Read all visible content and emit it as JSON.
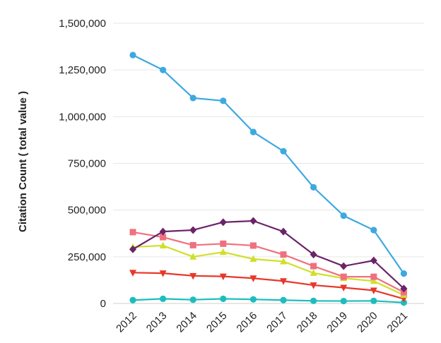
{
  "chart_data": {
    "type": "line",
    "title": "",
    "xlabel": "",
    "ylabel": "Citation Count ( total value )",
    "categories": [
      "2012",
      "2013",
      "2014",
      "2015",
      "2016",
      "2017",
      "2018",
      "2019",
      "2020",
      "2021"
    ],
    "ylim": [
      0,
      1500000
    ],
    "yticks": [
      0,
      250000,
      500000,
      750000,
      1000000,
      1250000,
      1500000
    ],
    "ytick_labels": [
      "0",
      "250,000",
      "500,000",
      "750,000",
      "1,000,000",
      "1,250,000",
      "1,500,000"
    ],
    "grid": true,
    "legend": "none",
    "series": [
      {
        "color": "#3ea8e0",
        "marker": "circle",
        "values": [
          1330000,
          1250000,
          1100000,
          1085000,
          918000,
          815000,
          622000,
          470000,
          393000,
          160000
        ]
      },
      {
        "color": "#6b2468",
        "marker": "diamond",
        "values": [
          290000,
          385000,
          393000,
          435000,
          442000,
          385000,
          262000,
          200000,
          230000,
          80000
        ]
      },
      {
        "color": "#f0707e",
        "marker": "square",
        "values": [
          382000,
          355000,
          312000,
          320000,
          310000,
          262000,
          200000,
          143000,
          143000,
          60000
        ]
      },
      {
        "color": "#cfe02a",
        "marker": "triangle-up",
        "values": [
          302000,
          310000,
          250000,
          275000,
          238000,
          225000,
          163000,
          135000,
          120000,
          45000
        ]
      },
      {
        "color": "#e8372a",
        "marker": "triangle-down",
        "values": [
          165000,
          162000,
          148000,
          145000,
          135000,
          120000,
          98000,
          85000,
          70000,
          25000
        ]
      },
      {
        "color": "#1cbdbd",
        "marker": "circle",
        "values": [
          18000,
          25000,
          20000,
          25000,
          22000,
          18000,
          14000,
          13000,
          14000,
          5000
        ]
      }
    ]
  }
}
